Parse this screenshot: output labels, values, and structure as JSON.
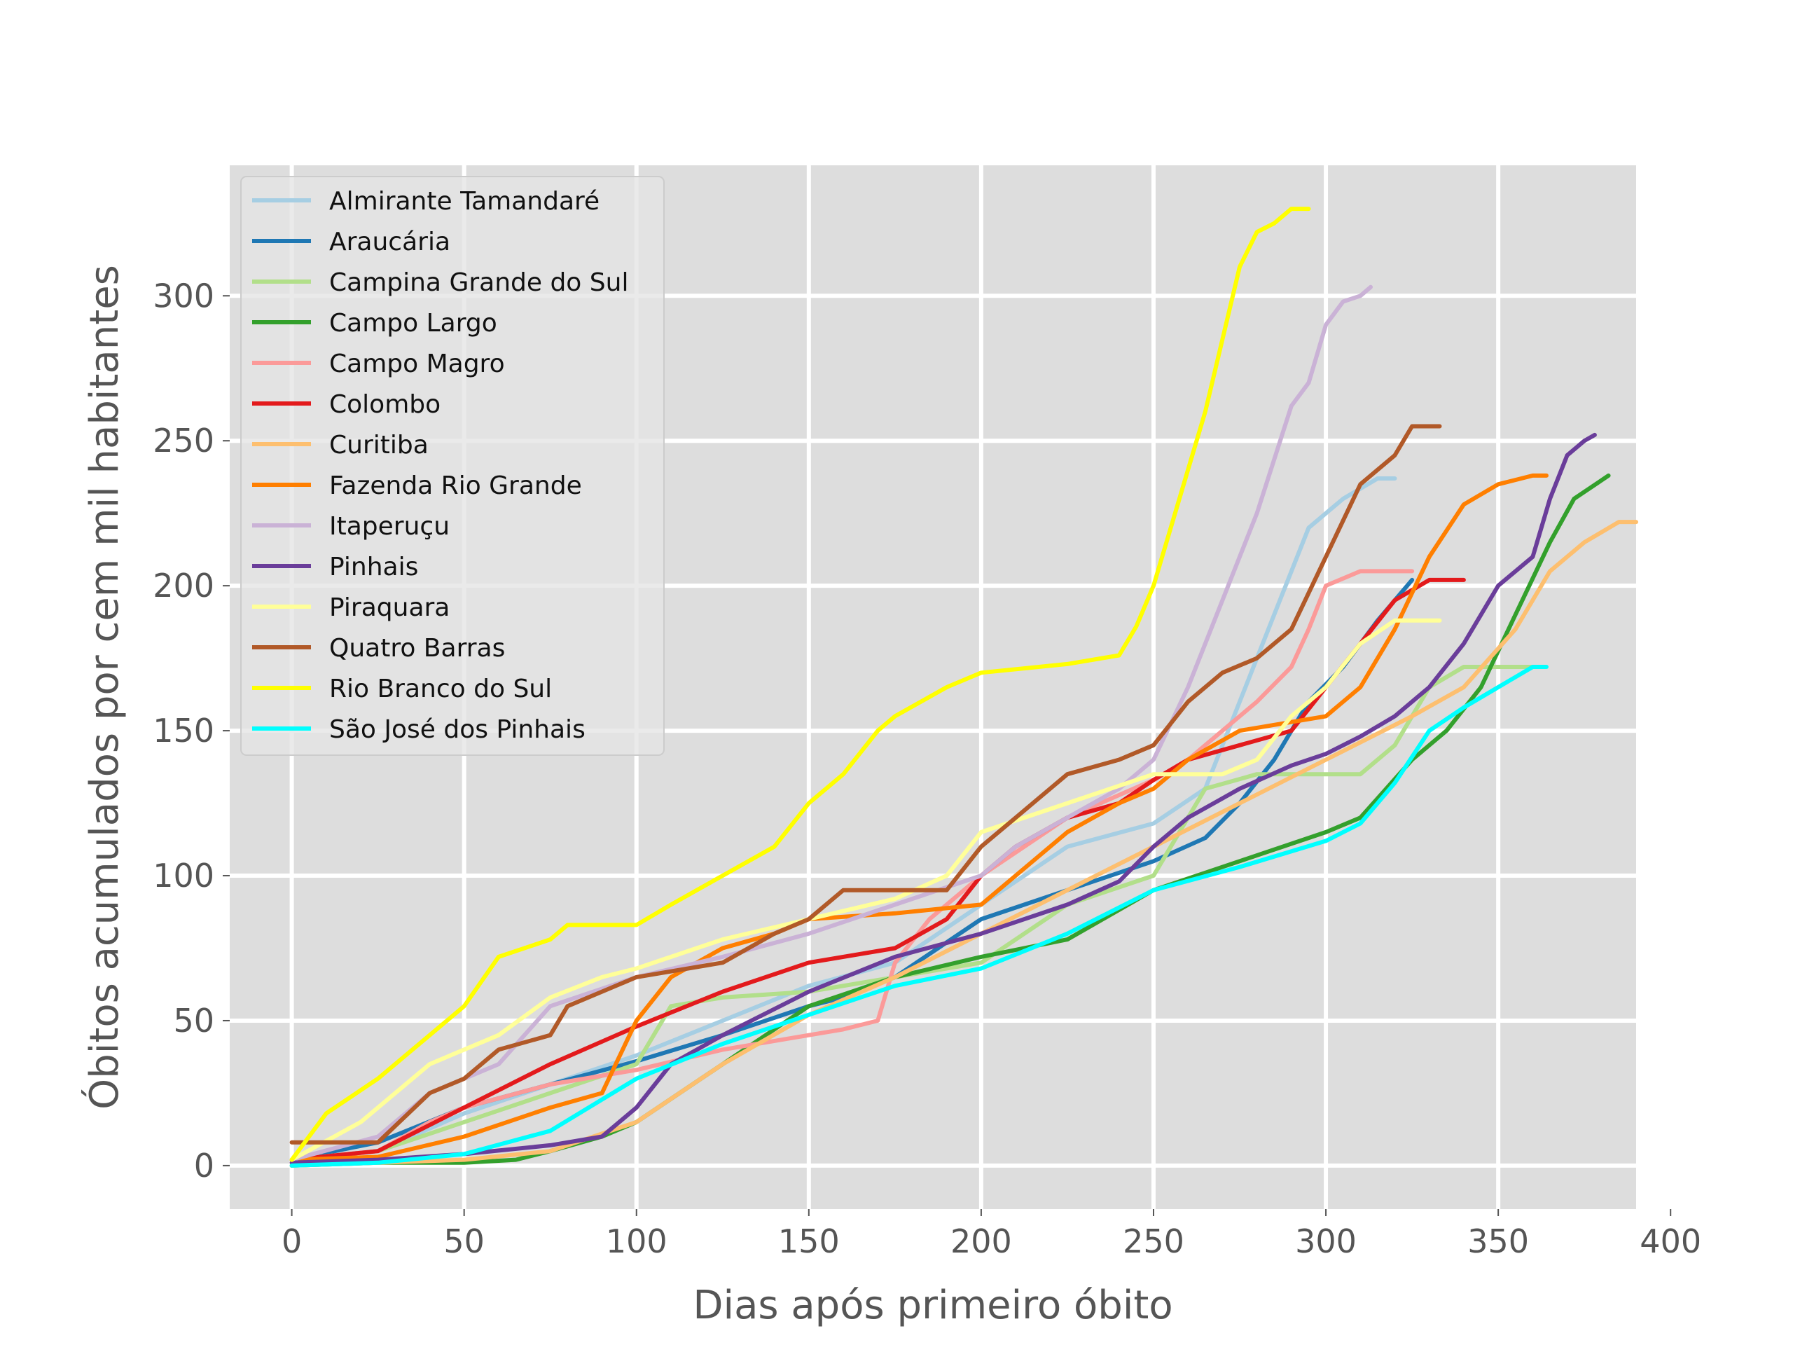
{
  "chart_data": {
    "type": "line",
    "title": "",
    "xlabel": "Dias após primeiro óbito",
    "ylabel": "Óbitos acumulados por cem mil habitantes",
    "xlim": [
      -18,
      390
    ],
    "ylim": [
      -15,
      345
    ],
    "x_ticks": [
      0,
      50,
      100,
      150,
      200,
      250,
      300,
      350,
      400
    ],
    "y_ticks": [
      0,
      50,
      100,
      150,
      200,
      250,
      300
    ],
    "grid": true,
    "legend_position": "top-left",
    "background": "#dddddd",
    "series": [
      {
        "name": "Almirante Tamandaré",
        "color": "#a6cee3",
        "x": [
          0,
          25,
          50,
          75,
          100,
          125,
          150,
          175,
          200,
          225,
          250,
          265,
          275,
          285,
          295,
          305,
          315,
          320
        ],
        "y": [
          2,
          5,
          18,
          28,
          38,
          50,
          62,
          70,
          90,
          110,
          118,
          130,
          160,
          190,
          220,
          230,
          237,
          237
        ]
      },
      {
        "name": "Araucária",
        "color": "#1f78b4",
        "x": [
          0,
          25,
          50,
          75,
          100,
          125,
          150,
          160,
          175,
          200,
          225,
          250,
          265,
          275,
          285,
          295,
          305,
          315,
          325
        ],
        "y": [
          2,
          8,
          20,
          28,
          36,
          45,
          55,
          58,
          65,
          85,
          95,
          105,
          113,
          125,
          140,
          160,
          172,
          188,
          202
        ]
      },
      {
        "name": "Campina Grande do Sul",
        "color": "#b2df8a",
        "x": [
          0,
          25,
          50,
          75,
          100,
          110,
          125,
          150,
          175,
          200,
          225,
          250,
          265,
          280,
          290,
          300,
          310,
          320,
          330,
          340,
          350,
          360,
          362
        ],
        "y": [
          2,
          5,
          15,
          25,
          35,
          55,
          58,
          60,
          65,
          70,
          90,
          100,
          130,
          135,
          135,
          135,
          135,
          145,
          165,
          172,
          172,
          172,
          172
        ]
      },
      {
        "name": "Campo Largo",
        "color": "#33a02c",
        "x": [
          0,
          25,
          50,
          65,
          75,
          90,
          100,
          125,
          150,
          175,
          200,
          225,
          250,
          275,
          300,
          310,
          325,
          335,
          345,
          355,
          365,
          372,
          382
        ],
        "y": [
          0,
          1,
          1,
          2,
          5,
          10,
          15,
          35,
          55,
          65,
          72,
          78,
          95,
          105,
          115,
          120,
          140,
          150,
          165,
          190,
          215,
          230,
          238
        ]
      },
      {
        "name": "Campo Magro",
        "color": "#fb9a99",
        "x": [
          0,
          25,
          40,
          50,
          75,
          100,
          125,
          150,
          160,
          170,
          175,
          185,
          200,
          225,
          250,
          260,
          270,
          280,
          290,
          295,
          300,
          310,
          320,
          325
        ],
        "y": [
          2,
          5,
          15,
          20,
          28,
          33,
          40,
          45,
          47,
          50,
          70,
          85,
          100,
          120,
          133,
          140,
          150,
          160,
          172,
          185,
          200,
          205,
          205,
          205
        ]
      },
      {
        "name": "Colombo",
        "color": "#e31a1c",
        "x": [
          0,
          25,
          50,
          75,
          100,
          125,
          150,
          175,
          190,
          200,
          210,
          225,
          240,
          250,
          260,
          275,
          290,
          300,
          310,
          320,
          330,
          340
        ],
        "y": [
          2,
          5,
          20,
          35,
          48,
          60,
          70,
          75,
          85,
          100,
          110,
          120,
          125,
          133,
          140,
          145,
          150,
          165,
          180,
          195,
          202,
          202
        ]
      },
      {
        "name": "Curitiba",
        "color": "#fdbf6f",
        "x": [
          0,
          25,
          50,
          75,
          100,
          125,
          150,
          175,
          200,
          225,
          250,
          275,
          300,
          325,
          340,
          355,
          365,
          375,
          385,
          390
        ],
        "y": [
          0,
          1,
          2,
          5,
          15,
          35,
          52,
          65,
          80,
          95,
          110,
          125,
          140,
          155,
          165,
          185,
          205,
          215,
          222,
          222
        ]
      },
      {
        "name": "Fazenda Rio Grande",
        "color": "#ff7f00",
        "x": [
          0,
          25,
          50,
          75,
          90,
          100,
          110,
          125,
          140,
          150,
          175,
          200,
          210,
          225,
          240,
          250,
          260,
          275,
          290,
          300,
          310,
          320,
          330,
          340,
          350,
          360,
          364
        ],
        "y": [
          2,
          3,
          10,
          20,
          25,
          50,
          65,
          75,
          80,
          85,
          87,
          90,
          100,
          115,
          125,
          130,
          140,
          150,
          153,
          155,
          165,
          185,
          210,
          228,
          235,
          238,
          238
        ]
      },
      {
        "name": "Itaperuçu",
        "color": "#cab2d6",
        "x": [
          0,
          25,
          40,
          50,
          60,
          75,
          100,
          125,
          150,
          175,
          200,
          210,
          225,
          240,
          250,
          260,
          270,
          280,
          290,
          295,
          300,
          305,
          310,
          313
        ],
        "y": [
          2,
          10,
          25,
          30,
          35,
          55,
          65,
          72,
          80,
          90,
          100,
          110,
          120,
          130,
          140,
          165,
          195,
          225,
          262,
          270,
          290,
          298,
          300,
          303
        ]
      },
      {
        "name": "Pinhais",
        "color": "#6a3d9a",
        "x": [
          0,
          25,
          50,
          75,
          90,
          100,
          110,
          125,
          150,
          175,
          200,
          225,
          240,
          250,
          260,
          275,
          290,
          300,
          310,
          320,
          330,
          340,
          350,
          360,
          365,
          370,
          375,
          378
        ],
        "y": [
          1,
          2,
          4,
          7,
          10,
          20,
          35,
          45,
          60,
          72,
          80,
          90,
          98,
          110,
          120,
          130,
          138,
          142,
          148,
          155,
          165,
          180,
          200,
          210,
          230,
          245,
          250,
          252
        ]
      },
      {
        "name": "Piraquara",
        "color": "#ffff99",
        "x": [
          0,
          20,
          40,
          60,
          75,
          90,
          100,
          125,
          150,
          175,
          190,
          200,
          225,
          250,
          270,
          280,
          290,
          300,
          310,
          320,
          333
        ],
        "y": [
          2,
          15,
          35,
          45,
          58,
          65,
          68,
          78,
          85,
          92,
          100,
          115,
          125,
          135,
          135,
          140,
          155,
          165,
          180,
          188,
          188
        ]
      },
      {
        "name": "Quatro Barras",
        "color": "#b15928",
        "x": [
          0,
          25,
          40,
          50,
          60,
          75,
          80,
          90,
          100,
          125,
          140,
          150,
          160,
          175,
          190,
          200,
          210,
          225,
          240,
          250,
          260,
          270,
          280,
          290,
          300,
          310,
          320,
          325,
          333
        ],
        "y": [
          8,
          8,
          25,
          30,
          40,
          45,
          55,
          60,
          65,
          70,
          80,
          85,
          95,
          95,
          95,
          110,
          120,
          135,
          140,
          145,
          160,
          170,
          175,
          185,
          210,
          235,
          245,
          255,
          255
        ]
      },
      {
        "name": "Rio Branco do Sul",
        "color": "#ffff00",
        "x": [
          0,
          10,
          25,
          40,
          50,
          60,
          75,
          80,
          100,
          110,
          125,
          140,
          150,
          160,
          170,
          175,
          190,
          200,
          225,
          240,
          245,
          250,
          255,
          260,
          265,
          270,
          275,
          280,
          285,
          290,
          295
        ],
        "y": [
          2,
          18,
          30,
          45,
          55,
          72,
          78,
          83,
          83,
          90,
          100,
          110,
          125,
          135,
          150,
          155,
          165,
          170,
          173,
          176,
          186,
          200,
          220,
          240,
          260,
          285,
          310,
          322,
          325,
          330,
          330
        ]
      },
      {
        "name": "São José dos Pinhais",
        "color": "#00ffff",
        "x": [
          0,
          25,
          50,
          75,
          100,
          125,
          150,
          175,
          200,
          225,
          250,
          275,
          300,
          310,
          320,
          330,
          340,
          350,
          360,
          364
        ],
        "y": [
          0,
          1,
          4,
          12,
          30,
          42,
          52,
          62,
          68,
          80,
          95,
          103,
          112,
          118,
          132,
          150,
          158,
          165,
          172,
          172
        ]
      }
    ]
  }
}
